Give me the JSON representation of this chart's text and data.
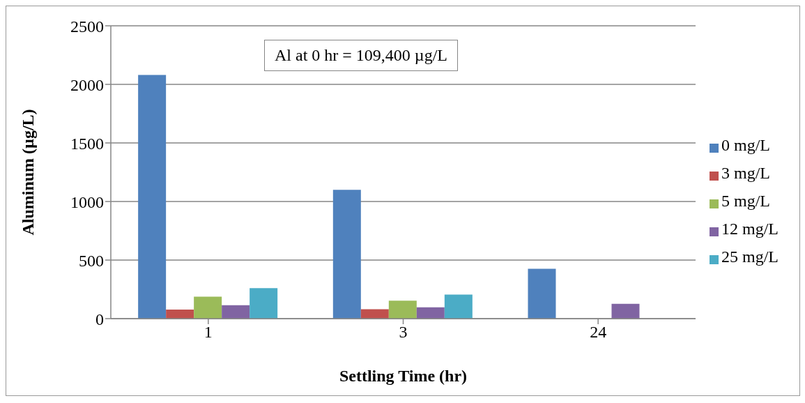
{
  "chart_data": {
    "type": "bar",
    "xlabel": "Settling Time (hr)",
    "ylabel": "Aluminum (µg/L)",
    "categories": [
      "1",
      "3",
      "24"
    ],
    "series": [
      {
        "name": "0 mg/L",
        "color": "#4f81bd",
        "values": [
          2080,
          1100,
          425
        ]
      },
      {
        "name": "3 mg/L",
        "color": "#c0504d",
        "values": [
          78,
          80,
          null
        ]
      },
      {
        "name": "5 mg/L",
        "color": "#9bbb59",
        "values": [
          188,
          154,
          null
        ]
      },
      {
        "name": "12 mg/L",
        "color": "#8064a2",
        "values": [
          114,
          97,
          126
        ]
      },
      {
        "name": "25 mg/L",
        "color": "#4bacc6",
        "values": [
          261,
          206,
          null
        ]
      }
    ],
    "ylim": [
      0,
      2500
    ],
    "yticks": [
      0,
      500,
      1000,
      1500,
      2000,
      2500
    ],
    "grid": "y",
    "legend": "right",
    "annotations": [
      "Al at 0 hr = 109,400 µg/L"
    ]
  }
}
